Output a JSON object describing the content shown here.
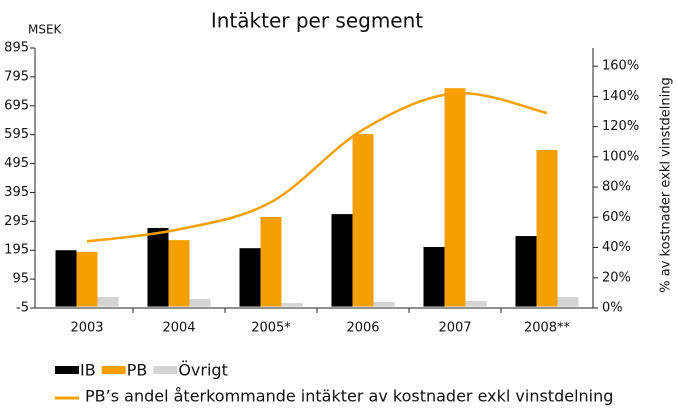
{
  "chart_data": {
    "type": "bar",
    "title": "Intäkter per segment",
    "y_label": "MSEK",
    "y2_label": "% av kostnader exkl vinstdelning",
    "categories": [
      "2003",
      "2004",
      "2005*",
      "2006",
      "2007",
      "2008**"
    ],
    "series": [
      {
        "name": "IB",
        "color": "#000000",
        "values": [
          195,
          272,
          202,
          320,
          206,
          244
        ]
      },
      {
        "name": "PB",
        "color": "#f5a000",
        "values": [
          189,
          230,
          310,
          597,
          756,
          542
        ]
      },
      {
        "name": "Övrigt",
        "color": "#d3d3d3",
        "values": [
          33,
          26,
          12,
          16,
          19,
          33
        ]
      },
      {
        "name": "PB’s andel återkommande intäkter av kostnader exkl vinstdelning",
        "type": "line",
        "axis": "y2",
        "color": "#f5a000",
        "values": [
          44,
          52,
          70,
          118,
          142,
          129
        ]
      }
    ],
    "ylim": [
      -5,
      895
    ],
    "yticks": [
      -5,
      95,
      195,
      295,
      395,
      495,
      595,
      695,
      795,
      895
    ],
    "y2lim": [
      0,
      172
    ],
    "y2ticks": [
      {
        "value": 0,
        "label": "0%"
      },
      {
        "value": 20,
        "label": "20%"
      },
      {
        "value": 40,
        "label": "40%"
      },
      {
        "value": 60,
        "label": "60%"
      },
      {
        "value": 80,
        "label": "80%"
      },
      {
        "value": 100,
        "label": "100%"
      },
      {
        "value": 120,
        "label": "120%"
      },
      {
        "value": 140,
        "label": "140%"
      },
      {
        "value": 160,
        "label": "160%"
      }
    ]
  }
}
